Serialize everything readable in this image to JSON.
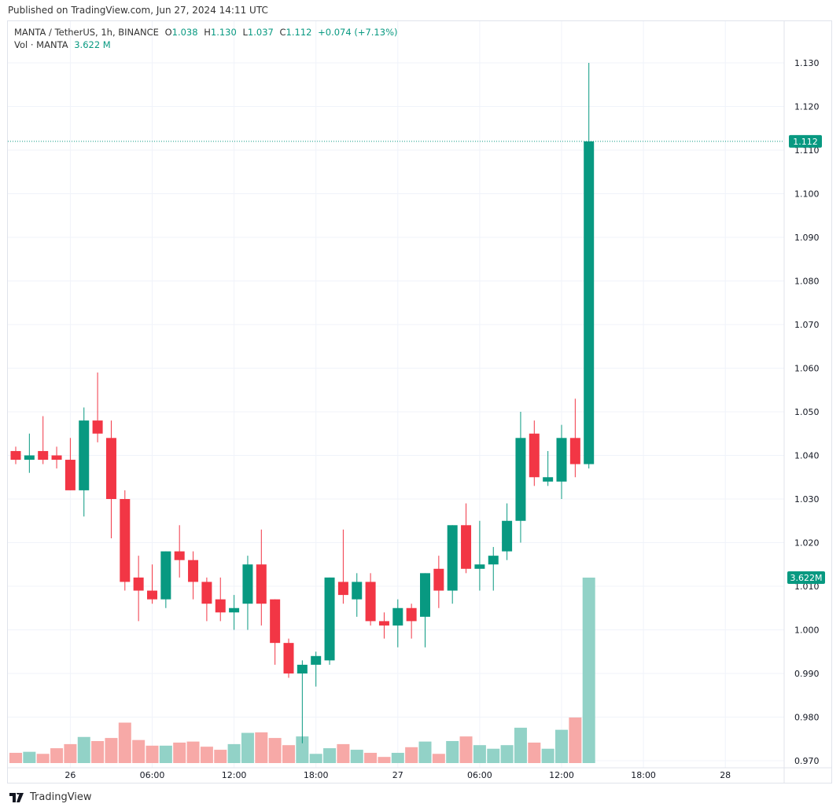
{
  "header": {
    "published": "Published on TradingView.com, Jun 27, 2024 14:11 UTC"
  },
  "legend": {
    "symbol": "MANTA / TetherUS, 1h, BINANCE",
    "o_label": "O",
    "o": "1.038",
    "h_label": "H",
    "h": "1.130",
    "l_label": "L",
    "l": "1.037",
    "c_label": "C",
    "c": "1.112",
    "change": "+0.074 (+7.13%)",
    "vol_label": "Vol · MANTA",
    "vol": "3.622 M"
  },
  "footer": {
    "brand": "TradingView"
  },
  "colors": {
    "up": "#089981",
    "down": "#F23645",
    "vol_up": "#92d2c7",
    "vol_down": "#f7a9a7",
    "grid": "#f0f3fa"
  },
  "chart_data": {
    "type": "candlestick",
    "title": "MANTA / TetherUS, 1h, BINANCE",
    "ylim": [
      0.97,
      1.13
    ],
    "y_ticks": [
      "0.970",
      "0.980",
      "0.990",
      "1.000",
      "1.010",
      "1.020",
      "1.030",
      "1.040",
      "1.050",
      "1.060",
      "1.070",
      "1.080",
      "1.090",
      "1.100",
      "1.110",
      "1.120",
      "1.130"
    ],
    "x_ticks": [
      {
        "index": 4,
        "label": "26"
      },
      {
        "index": 10,
        "label": "06:00"
      },
      {
        "index": 16,
        "label": "12:00"
      },
      {
        "index": 22,
        "label": "18:00"
      },
      {
        "index": 28,
        "label": "27"
      },
      {
        "index": 34,
        "label": "06:00"
      },
      {
        "index": 40,
        "label": "12:00"
      },
      {
        "index": 46,
        "label": "18:00"
      },
      {
        "index": 52,
        "label": "28"
      }
    ],
    "grid": true,
    "last_price": "1.112",
    "last_volume": "3.622M",
    "volume_unit": "M",
    "candles": [
      [
        1.041,
        1.042,
        1.038,
        1.039,
        0.2
      ],
      [
        1.039,
        1.045,
        1.036,
        1.04,
        0.22
      ],
      [
        1.041,
        1.049,
        1.038,
        1.039,
        0.18
      ],
      [
        1.04,
        1.042,
        1.037,
        1.039,
        0.29
      ],
      [
        1.039,
        1.044,
        1.032,
        1.032,
        0.37
      ],
      [
        1.032,
        1.051,
        1.026,
        1.048,
        0.51
      ],
      [
        1.048,
        1.059,
        1.043,
        1.045,
        0.43
      ],
      [
        1.044,
        1.048,
        1.021,
        1.03,
        0.49
      ],
      [
        1.03,
        1.032,
        1.009,
        1.011,
        0.79
      ],
      [
        1.012,
        1.017,
        1.002,
        1.009,
        0.45
      ],
      [
        1.009,
        1.015,
        1.006,
        1.007,
        0.34
      ],
      [
        1.007,
        1.018,
        1.005,
        1.018,
        0.34
      ],
      [
        1.018,
        1.024,
        1.012,
        1.016,
        0.4
      ],
      [
        1.016,
        1.018,
        1.007,
        1.011,
        0.42
      ],
      [
        1.011,
        1.012,
        1.002,
        1.006,
        0.32
      ],
      [
        1.007,
        1.012,
        1.002,
        1.004,
        0.26
      ],
      [
        1.004,
        1.008,
        1.0,
        1.005,
        0.37
      ],
      [
        1.006,
        1.017,
        1.0,
        1.015,
        0.59
      ],
      [
        1.015,
        1.023,
        1.001,
        1.006,
        0.6
      ],
      [
        1.007,
        1.007,
        0.992,
        0.997,
        0.49
      ],
      [
        0.997,
        0.998,
        0.989,
        0.99,
        0.35
      ],
      [
        0.99,
        0.993,
        0.974,
        0.992,
        0.52
      ],
      [
        0.992,
        0.995,
        0.987,
        0.994,
        0.18
      ],
      [
        0.993,
        1.012,
        0.992,
        1.012,
        0.29
      ],
      [
        1.011,
        1.023,
        1.006,
        1.008,
        0.37
      ],
      [
        1.007,
        1.013,
        1.003,
        1.011,
        0.26
      ],
      [
        1.011,
        1.013,
        1.001,
        1.002,
        0.2
      ],
      [
        1.002,
        1.004,
        0.998,
        1.001,
        0.12
      ],
      [
        1.001,
        1.007,
        0.996,
        1.005,
        0.2
      ],
      [
        1.005,
        1.006,
        0.998,
        1.002,
        0.31
      ],
      [
        1.003,
        1.013,
        0.996,
        1.013,
        0.42
      ],
      [
        1.014,
        1.017,
        1.005,
        1.009,
        0.18
      ],
      [
        1.009,
        1.024,
        1.006,
        1.024,
        0.43
      ],
      [
        1.024,
        1.029,
        1.013,
        1.014,
        0.52
      ],
      [
        1.014,
        1.025,
        1.009,
        1.015,
        0.35
      ],
      [
        1.015,
        1.019,
        1.009,
        1.017,
        0.28
      ],
      [
        1.018,
        1.029,
        1.016,
        1.025,
        0.35
      ],
      [
        1.025,
        1.05,
        1.02,
        1.044,
        0.69
      ],
      [
        1.045,
        1.048,
        1.033,
        1.035,
        0.4
      ],
      [
        1.034,
        1.041,
        1.033,
        1.035,
        0.28
      ],
      [
        1.034,
        1.047,
        1.03,
        1.044,
        0.65
      ],
      [
        1.044,
        1.053,
        1.035,
        1.038,
        0.89
      ],
      [
        1.038,
        1.13,
        1.037,
        1.112,
        3.622
      ]
    ],
    "candle_fields": [
      "open",
      "high",
      "low",
      "close",
      "volume_M"
    ]
  }
}
